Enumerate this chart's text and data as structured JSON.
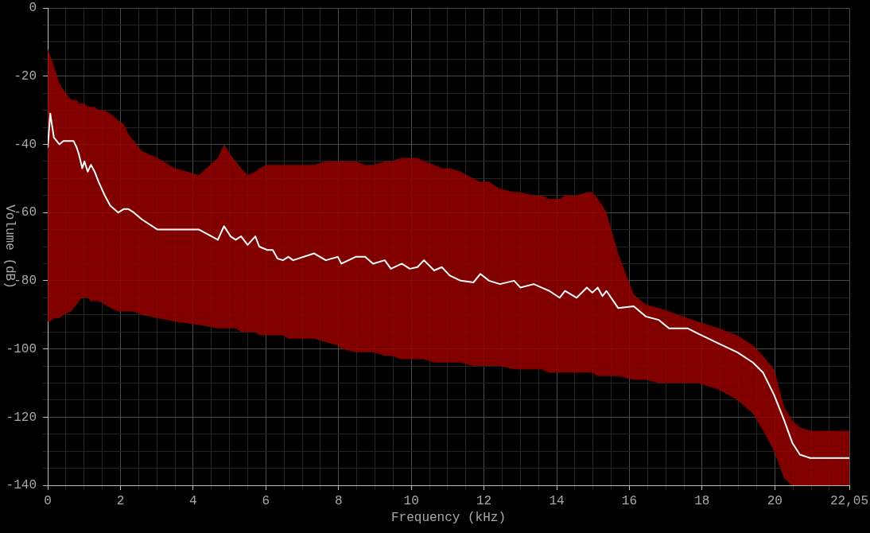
{
  "chart_data": {
    "type": "line",
    "xlabel": "Frequency (kHz)",
    "ylabel": "Volume (dB)",
    "grid": true,
    "xlim": [
      0,
      22.05
    ],
    "ylim": [
      -140,
      0
    ],
    "xticks": [
      0,
      {
        "value": 0.5,
        "label": null
      },
      {
        "value": 1,
        "label": null
      },
      {
        "value": 1.5,
        "label": null
      },
      2,
      {
        "value": 2.5,
        "label": null
      },
      {
        "value": 3,
        "label": null
      },
      {
        "value": 3.5,
        "label": null
      },
      4,
      {
        "value": 4.5,
        "label": null
      },
      {
        "value": 5,
        "label": null
      },
      {
        "value": 5.5,
        "label": null
      },
      6,
      {
        "value": 6.5,
        "label": null
      },
      {
        "value": 7,
        "label": null
      },
      {
        "value": 7.5,
        "label": null
      },
      8,
      {
        "value": 8.5,
        "label": null
      },
      {
        "value": 9,
        "label": null
      },
      {
        "value": 9.5,
        "label": null
      },
      10,
      {
        "value": 10.5,
        "label": null
      },
      {
        "value": 11,
        "label": null
      },
      {
        "value": 11.5,
        "label": null
      },
      12,
      {
        "value": 12.5,
        "label": null
      },
      {
        "value": 13,
        "label": null
      },
      {
        "value": 13.5,
        "label": null
      },
      14,
      {
        "value": 14.5,
        "label": null
      },
      {
        "value": 15,
        "label": null
      },
      {
        "value": 15.5,
        "label": null
      },
      16,
      {
        "value": 16.5,
        "label": null
      },
      {
        "value": 17,
        "label": null
      },
      {
        "value": 17.5,
        "label": null
      },
      18,
      {
        "value": 18.5,
        "label": null
      },
      {
        "value": 19,
        "label": null
      },
      {
        "value": 19.5,
        "label": null
      },
      20,
      {
        "value": 20.5,
        "label": null
      },
      {
        "value": 21,
        "label": null
      },
      {
        "value": 21.5,
        "label": null
      },
      {
        "value": 22.05,
        "label": "22,05"
      }
    ],
    "yticks": [
      -140,
      {
        "value": -135,
        "label": null
      },
      {
        "value": -130,
        "label": null
      },
      {
        "value": -125,
        "label": null
      },
      -120,
      {
        "value": -115,
        "label": null
      },
      {
        "value": -110,
        "label": null
      },
      {
        "value": -105,
        "label": null
      },
      -100,
      {
        "value": -95,
        "label": null
      },
      {
        "value": -90,
        "label": null
      },
      {
        "value": -85,
        "label": null
      },
      -80,
      {
        "value": -75,
        "label": null
      },
      {
        "value": -70,
        "label": null
      },
      {
        "value": -65,
        "label": null
      },
      -60,
      {
        "value": -55,
        "label": null
      },
      {
        "value": -50,
        "label": null
      },
      {
        "value": -45,
        "label": null
      },
      -40,
      {
        "value": -35,
        "label": null
      },
      {
        "value": -30,
        "label": null
      },
      {
        "value": -25,
        "label": null
      },
      -20,
      {
        "value": -15,
        "label": null
      },
      {
        "value": -10,
        "label": null
      },
      {
        "value": -5,
        "label": null
      },
      0
    ],
    "x": [
      0,
      0.07,
      0.17,
      0.32,
      0.43,
      0.65,
      0.71,
      0.8,
      0.86,
      0.95,
      1.01,
      1.1,
      1.19,
      1.29,
      1.4,
      1.57,
      1.72,
      1.94,
      2.09,
      2.22,
      2.37,
      2.59,
      3.02,
      3.5,
      4.16,
      4.68,
      4.85,
      5.03,
      5.17,
      5.32,
      5.5,
      5.71,
      5.82,
      6.04,
      6.19,
      6.32,
      6.47,
      6.62,
      6.75,
      7.33,
      7.65,
      7.98,
      8.08,
      8.47,
      8.73,
      8.95,
      9.27,
      9.44,
      9.74,
      9.96,
      10.17,
      10.35,
      10.63,
      10.84,
      11.06,
      11.36,
      11.71,
      11.9,
      12.14,
      12.44,
      12.83,
      13,
      13.37,
      13.58,
      13.8,
      14.08,
      14.23,
      14.55,
      14.83,
      14.98,
      15.13,
      15.26,
      15.37,
      15.69,
      16.12,
      16.45,
      16.81,
      17.09,
      17.61,
      17.89,
      18.47,
      18.97,
      19.4,
      19.68,
      19.98,
      20.26,
      20.48,
      20.69,
      20.97,
      22.05
    ],
    "series": [
      {
        "color": "#ffffff",
        "values": [
          -41,
          -31,
          -38,
          -40,
          -39,
          -39,
          -39,
          -41,
          -43,
          -47,
          -45,
          -48,
          -46,
          -48,
          -51,
          -55,
          -58,
          -60,
          -59,
          -59,
          -60,
          -62,
          -65,
          -65,
          -65,
          -68,
          -64,
          -67,
          -68,
          -67,
          -69.5,
          -67,
          -70,
          -71,
          -71,
          -73.5,
          -74,
          -73,
          -74,
          -72,
          -74,
          -73,
          -75,
          -73,
          -73,
          -75,
          -74,
          -76.5,
          -75,
          -76.5,
          -76,
          -74,
          -77,
          -76,
          -78.5,
          -80,
          -80.5,
          -78,
          -80,
          -81,
          -80,
          -82,
          -81,
          -82,
          -83,
          -85,
          -83,
          -85,
          -82,
          -83.5,
          -82,
          -84.5,
          -83,
          -88,
          -87.5,
          -90.5,
          -91.5,
          -94,
          -94,
          -95.5,
          -98.5,
          -101,
          -104,
          -107,
          -113.5,
          -121,
          -127.5,
          -131,
          -132,
          -132
        ],
        "upper": [
          -12,
          -14,
          -17,
          -22,
          -24,
          -27,
          -27,
          -27,
          -28,
          -28,
          -28,
          -29,
          -29,
          -29,
          -30,
          -30,
          -31,
          -33,
          -34,
          -37,
          -39,
          -42,
          -44,
          -47,
          -49,
          -44,
          -40,
          -43,
          -45,
          -47,
          -49,
          -48,
          -47,
          -46,
          -46,
          -46,
          -46,
          -46,
          -46,
          -46,
          -45,
          -45,
          -45,
          -45,
          -46,
          -46,
          -45,
          -45,
          -44,
          -44,
          -44,
          -45,
          -46,
          -47,
          -47,
          -48,
          -50,
          -51,
          -51,
          -53,
          -54,
          -54,
          -55,
          -55,
          -56,
          -56,
          -55,
          -55,
          -54,
          -54,
          -56,
          -58,
          -60,
          -72,
          -84,
          -87,
          -88,
          -89,
          -91,
          -92,
          -94,
          -96,
          -99,
          -102,
          -106,
          -117,
          -121,
          -123,
          -124,
          -124
        ],
        "lower": [
          -92,
          -92,
          -91,
          -91,
          -90,
          -89,
          -88,
          -87,
          -86,
          -85,
          -85,
          -85,
          -86,
          -86,
          -86,
          -87,
          -88,
          -89,
          -89,
          -89,
          -89,
          -90,
          -91,
          -92,
          -93,
          -94,
          -94,
          -94,
          -94,
          -95,
          -95,
          -95,
          -96,
          -96,
          -96,
          -96,
          -96,
          -97,
          -97,
          -97,
          -98,
          -99,
          -100,
          -101,
          -101,
          -101,
          -102,
          -102,
          -103,
          -103,
          -103,
          -103,
          -104,
          -104,
          -104,
          -104,
          -105,
          -105,
          -105,
          -105,
          -106,
          -106,
          -106,
          -106,
          -107,
          -107,
          -107,
          -107,
          -107,
          -107,
          -108,
          -108,
          -108,
          -108,
          -109,
          -109,
          -110,
          -110,
          -110,
          -110,
          -112,
          -115,
          -119,
          -124,
          -130,
          -138,
          -140,
          -140,
          -140,
          -140
        ]
      }
    ]
  }
}
